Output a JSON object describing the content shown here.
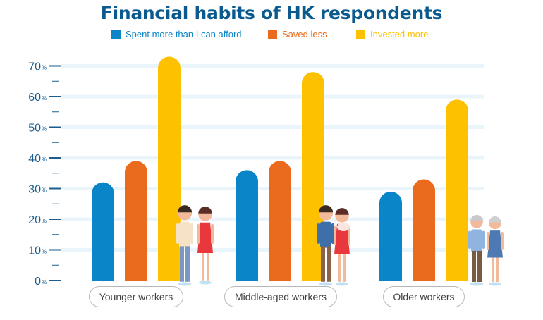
{
  "chart_data": {
    "type": "bar",
    "title": "Financial habits of HK respondents",
    "categories": [
      "Younger workers",
      "Middle-aged workers",
      "Older workers"
    ],
    "series": [
      {
        "name": "Spent more than I can afford",
        "color": "#0a86c8",
        "values": [
          32,
          36,
          29
        ]
      },
      {
        "name": "Saved less",
        "color": "#ea6b1d",
        "values": [
          39,
          39,
          33
        ]
      },
      {
        "name": "Invested more",
        "color": "#fdc100",
        "values": [
          73,
          68,
          59
        ]
      }
    ],
    "ylim": [
      0,
      75
    ],
    "yticks": [
      0,
      10,
      20,
      30,
      40,
      50,
      60,
      70
    ],
    "ytick_suffix": "%",
    "legend_position": "top",
    "grid": true
  },
  "colors": {
    "title": "#0b5a8f",
    "axis": "#1a5d8e",
    "grid": "#e9f4fb"
  },
  "illustrations": [
    "young-couple-icon",
    "parents-with-baby-icon",
    "elderly-couple-icon"
  ]
}
